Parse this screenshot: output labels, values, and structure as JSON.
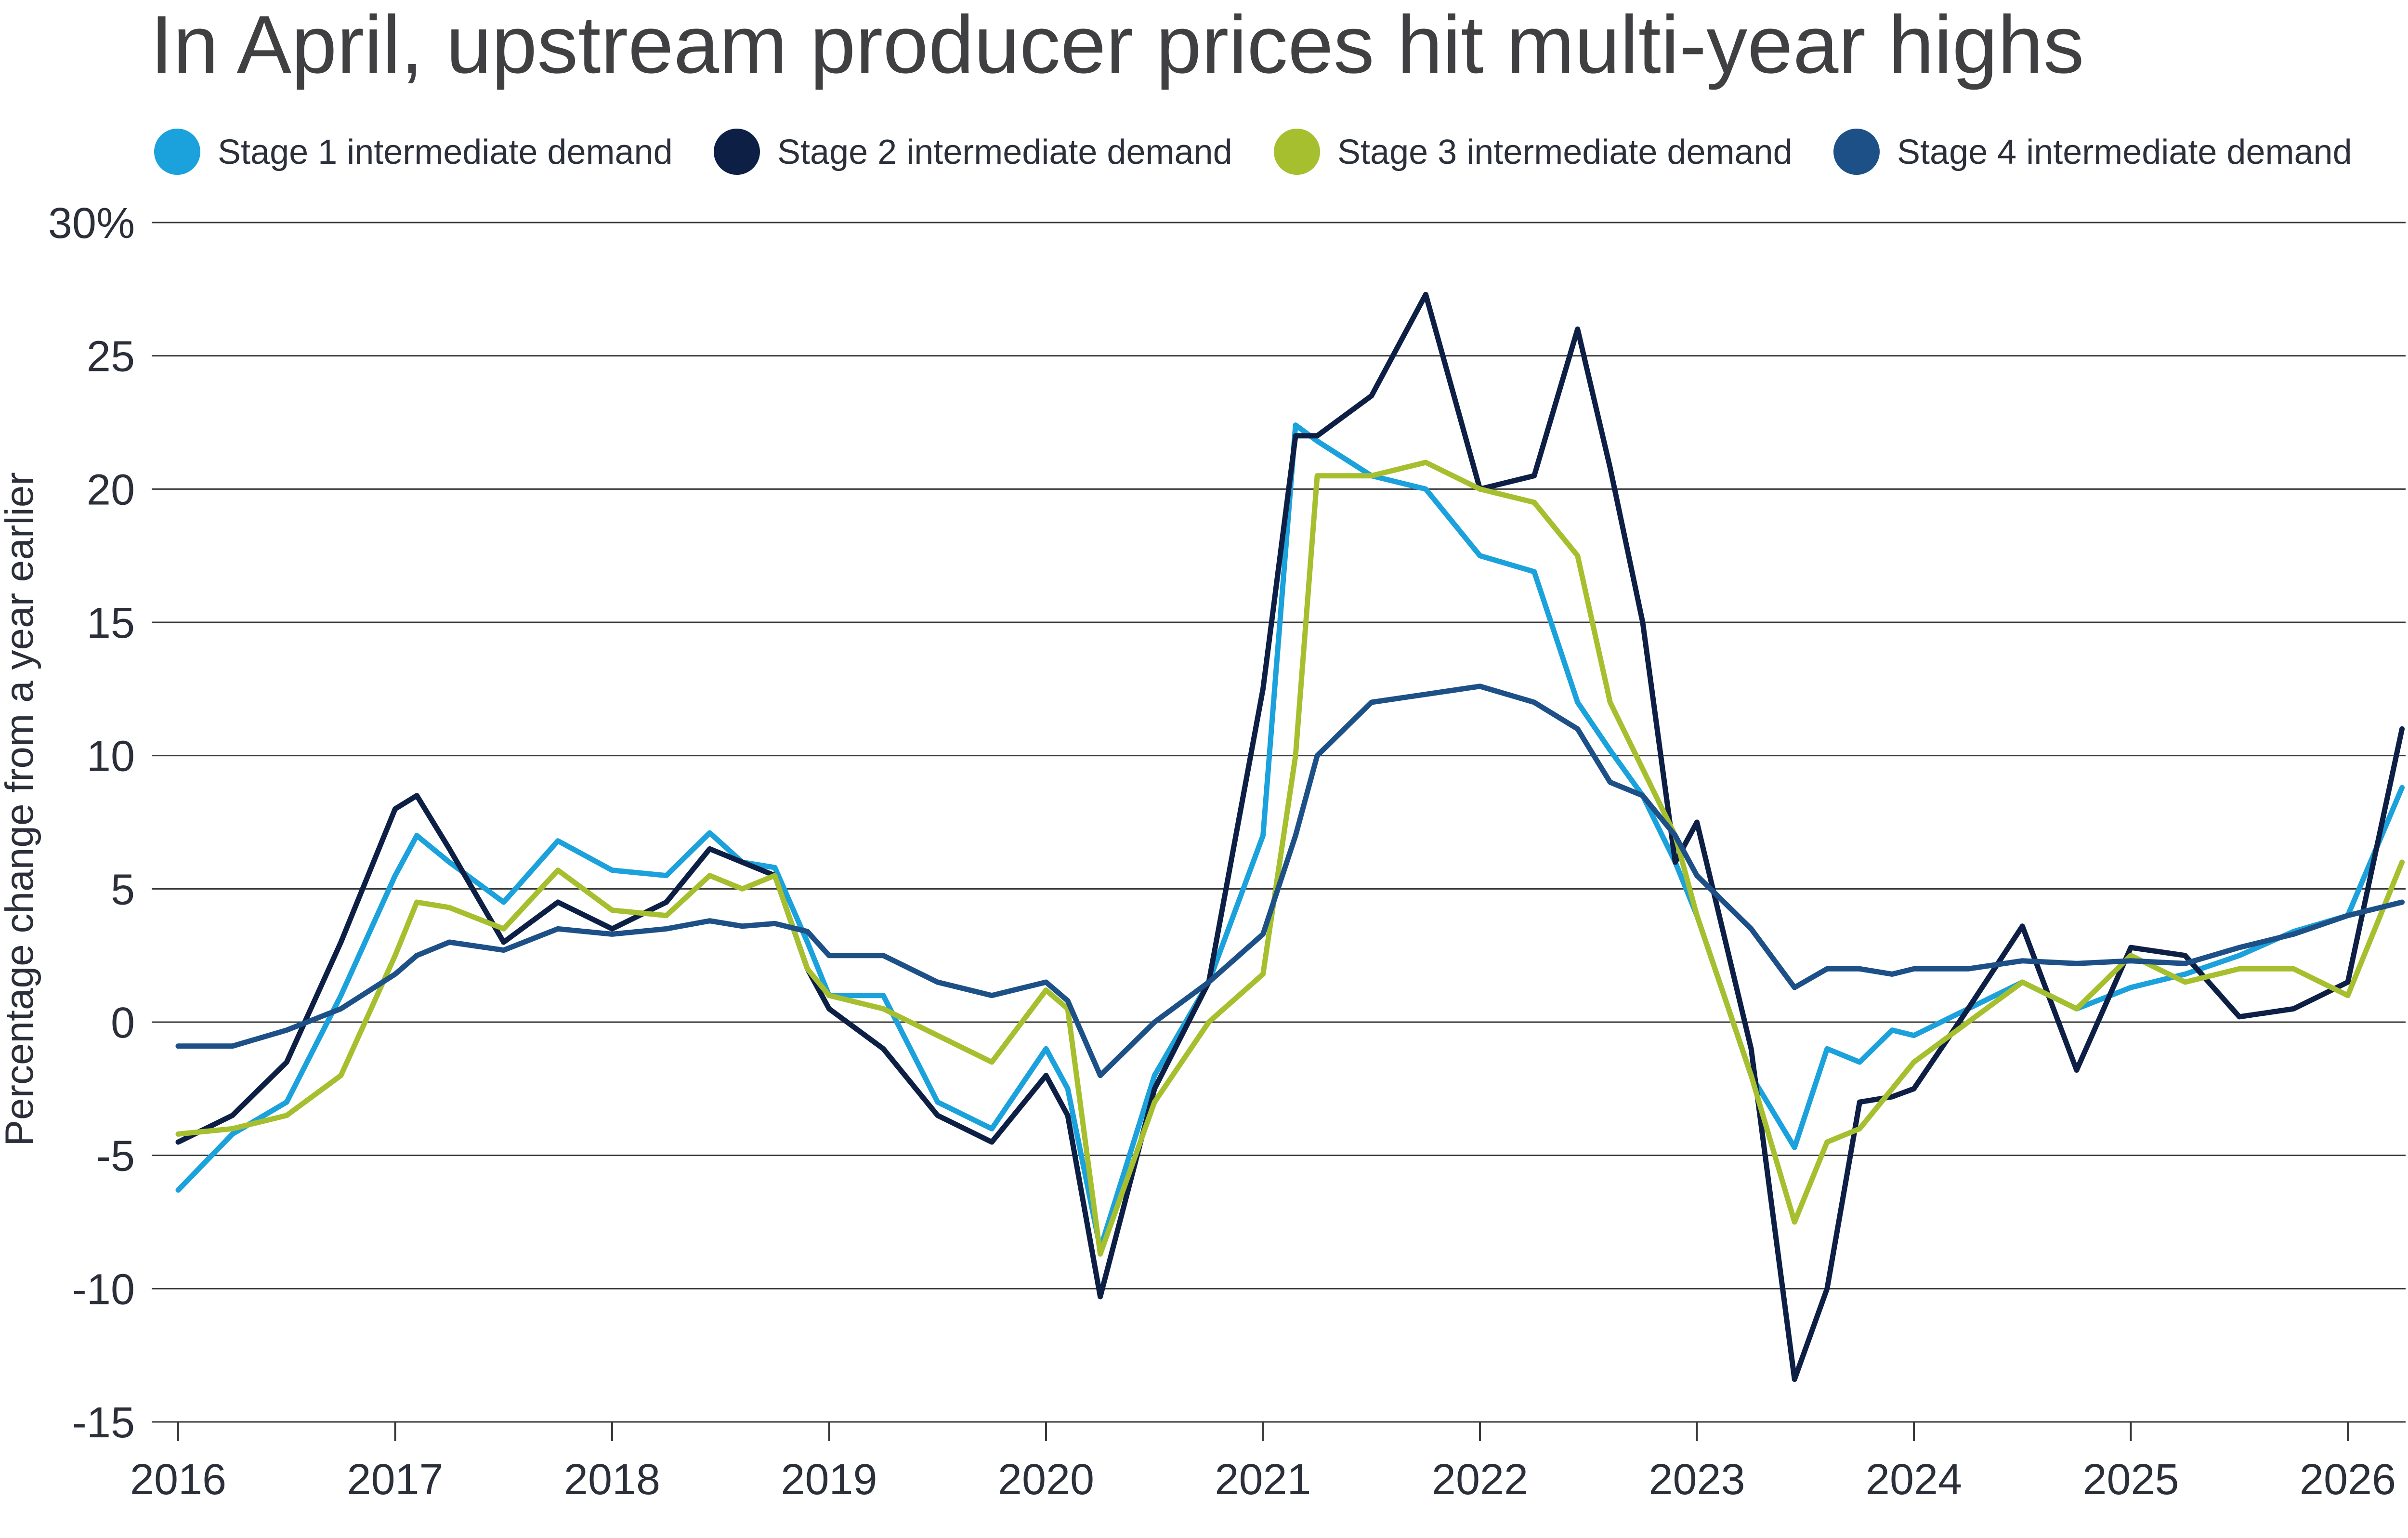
{
  "chart_data": {
    "type": "line",
    "title": "In April, upstream producer prices hit multi-year highs",
    "xlabel": "",
    "ylabel": "Percentage change from a year earlier",
    "ylim": [
      -15,
      30
    ],
    "xlim": [
      2016,
      2026.25
    ],
    "y_ticks": [
      -15,
      -10,
      -5,
      0,
      5,
      10,
      15,
      20,
      25,
      30
    ],
    "y_tick_labels": [
      "-15",
      "-10",
      "-5",
      "0",
      "5",
      "10",
      "15",
      "20",
      "25",
      "30%"
    ],
    "x_ticks": [
      2016,
      2017,
      2018,
      2019,
      2020,
      2021,
      2022,
      2023,
      2024,
      2025,
      2026
    ],
    "x_tick_labels": [
      "2016",
      "2017",
      "2018",
      "2019",
      "2020",
      "2021",
      "2022",
      "2023",
      "2024",
      "2025",
      "2026"
    ],
    "grid": "horizontal",
    "legend_position": "top",
    "series": [
      {
        "name": "Stage 1 intermediate demand",
        "color": "#1ba1dc",
        "x": [
          2016.0,
          2016.25,
          2016.5,
          2016.75,
          2017.0,
          2017.1,
          2017.25,
          2017.5,
          2017.75,
          2018.0,
          2018.25,
          2018.45,
          2018.6,
          2018.75,
          2018.9,
          2019.0,
          2019.25,
          2019.5,
          2019.75,
          2020.0,
          2020.1,
          2020.25,
          2020.5,
          2020.75,
          2021.0,
          2021.15,
          2021.25,
          2021.5,
          2021.75,
          2022.0,
          2022.25,
          2022.45,
          2022.6,
          2022.75,
          2022.9,
          2023.0,
          2023.25,
          2023.45,
          2023.6,
          2023.75,
          2023.9,
          2024.0,
          2024.25,
          2024.5,
          2024.75,
          2025.0,
          2025.25,
          2025.5,
          2025.75,
          2026.0,
          2026.25
        ],
        "values": [
          -6.3,
          -4.2,
          -3.0,
          1.0,
          5.5,
          7.0,
          6.0,
          4.5,
          6.8,
          5.7,
          5.5,
          7.1,
          6.0,
          5.8,
          3.0,
          1.0,
          1.0,
          -3.0,
          -4.0,
          -1.0,
          -2.5,
          -8.5,
          -2.0,
          1.5,
          7.0,
          22.4,
          21.8,
          20.5,
          20.0,
          17.5,
          16.9,
          12.0,
          10.2,
          8.5,
          6.0,
          4.0,
          -2.0,
          -4.7,
          -1.0,
          -1.5,
          -0.3,
          -0.5,
          0.5,
          1.5,
          0.5,
          1.3,
          1.8,
          2.5,
          3.4,
          4.0,
          8.8
        ]
      },
      {
        "name": "Stage 2 intermediate demand",
        "color": "#0d1f45",
        "x": [
          2016.0,
          2016.25,
          2016.5,
          2016.75,
          2017.0,
          2017.1,
          2017.25,
          2017.5,
          2017.75,
          2018.0,
          2018.25,
          2018.45,
          2018.6,
          2018.75,
          2018.9,
          2019.0,
          2019.25,
          2019.5,
          2019.75,
          2020.0,
          2020.1,
          2020.25,
          2020.5,
          2020.75,
          2021.0,
          2021.15,
          2021.25,
          2021.5,
          2021.75,
          2022.0,
          2022.25,
          2022.45,
          2022.6,
          2022.75,
          2022.9,
          2023.0,
          2023.25,
          2023.45,
          2023.6,
          2023.75,
          2023.9,
          2024.0,
          2024.25,
          2024.5,
          2024.75,
          2025.0,
          2025.25,
          2025.5,
          2025.75,
          2026.0,
          2026.25
        ],
        "values": [
          -4.5,
          -3.5,
          -1.5,
          3.0,
          8.0,
          8.5,
          6.5,
          3.0,
          4.5,
          3.5,
          4.5,
          6.5,
          6.0,
          5.5,
          2.0,
          0.5,
          -1.0,
          -3.5,
          -4.5,
          -2.0,
          -3.5,
          -10.3,
          -2.5,
          1.5,
          12.5,
          22.0,
          22.0,
          23.5,
          27.3,
          20.0,
          20.5,
          26.0,
          20.8,
          15.0,
          6.0,
          7.5,
          -1.0,
          -13.4,
          -10.0,
          -3.0,
          -2.8,
          -2.5,
          0.5,
          3.6,
          -1.8,
          2.8,
          2.5,
          0.2,
          0.5,
          1.5,
          11.0
        ]
      },
      {
        "name": "Stage 3 intermediate demand",
        "color": "#a6bf2e",
        "x": [
          2016.0,
          2016.25,
          2016.5,
          2016.75,
          2017.0,
          2017.1,
          2017.25,
          2017.5,
          2017.75,
          2018.0,
          2018.25,
          2018.45,
          2018.6,
          2018.75,
          2018.9,
          2019.0,
          2019.25,
          2019.5,
          2019.75,
          2020.0,
          2020.1,
          2020.25,
          2020.5,
          2020.75,
          2021.0,
          2021.15,
          2021.25,
          2021.5,
          2021.75,
          2022.0,
          2022.25,
          2022.45,
          2022.6,
          2022.75,
          2022.9,
          2023.0,
          2023.25,
          2023.45,
          2023.6,
          2023.75,
          2023.9,
          2024.0,
          2024.25,
          2024.5,
          2024.75,
          2025.0,
          2025.25,
          2025.5,
          2025.75,
          2026.0,
          2026.25
        ],
        "values": [
          -4.2,
          -4.0,
          -3.5,
          -2.0,
          2.5,
          4.5,
          4.3,
          3.5,
          5.7,
          4.2,
          4.0,
          5.5,
          5.0,
          5.5,
          2.0,
          1.0,
          0.5,
          -0.5,
          -1.5,
          1.2,
          0.5,
          -8.7,
          -3.0,
          0.0,
          1.8,
          10.0,
          20.5,
          20.5,
          21.0,
          20.0,
          19.5,
          17.5,
          12.0,
          9.5,
          7.0,
          4.0,
          -2.0,
          -7.5,
          -4.5,
          -4.0,
          -2.5,
          -1.5,
          0.0,
          1.5,
          0.5,
          2.5,
          1.5,
          2.0,
          2.0,
          1.0,
          6.0
        ]
      },
      {
        "name": "Stage 4 intermediate demand",
        "color": "#1d5087",
        "x": [
          2016.0,
          2016.25,
          2016.5,
          2016.75,
          2017.0,
          2017.1,
          2017.25,
          2017.5,
          2017.75,
          2018.0,
          2018.25,
          2018.45,
          2018.6,
          2018.75,
          2018.9,
          2019.0,
          2019.25,
          2019.5,
          2019.75,
          2020.0,
          2020.1,
          2020.25,
          2020.5,
          2020.75,
          2021.0,
          2021.15,
          2021.25,
          2021.5,
          2021.75,
          2022.0,
          2022.25,
          2022.45,
          2022.6,
          2022.75,
          2022.9,
          2023.0,
          2023.25,
          2023.45,
          2023.6,
          2023.75,
          2023.9,
          2024.0,
          2024.25,
          2024.5,
          2024.75,
          2025.0,
          2025.25,
          2025.5,
          2025.75,
          2026.0,
          2026.25
        ],
        "values": [
          -0.9,
          -0.9,
          -0.3,
          0.5,
          1.8,
          2.5,
          3.0,
          2.7,
          3.5,
          3.3,
          3.5,
          3.8,
          3.6,
          3.7,
          3.4,
          2.5,
          2.5,
          1.5,
          1.0,
          1.5,
          0.8,
          -2.0,
          0.0,
          1.5,
          3.3,
          7.0,
          10.0,
          12.0,
          12.3,
          12.6,
          12.0,
          11.0,
          9.0,
          8.5,
          7.0,
          5.5,
          3.5,
          1.3,
          2.0,
          2.0,
          1.8,
          2.0,
          2.0,
          2.3,
          2.2,
          2.3,
          2.2,
          2.8,
          3.3,
          4.0,
          4.5
        ]
      }
    ]
  }
}
